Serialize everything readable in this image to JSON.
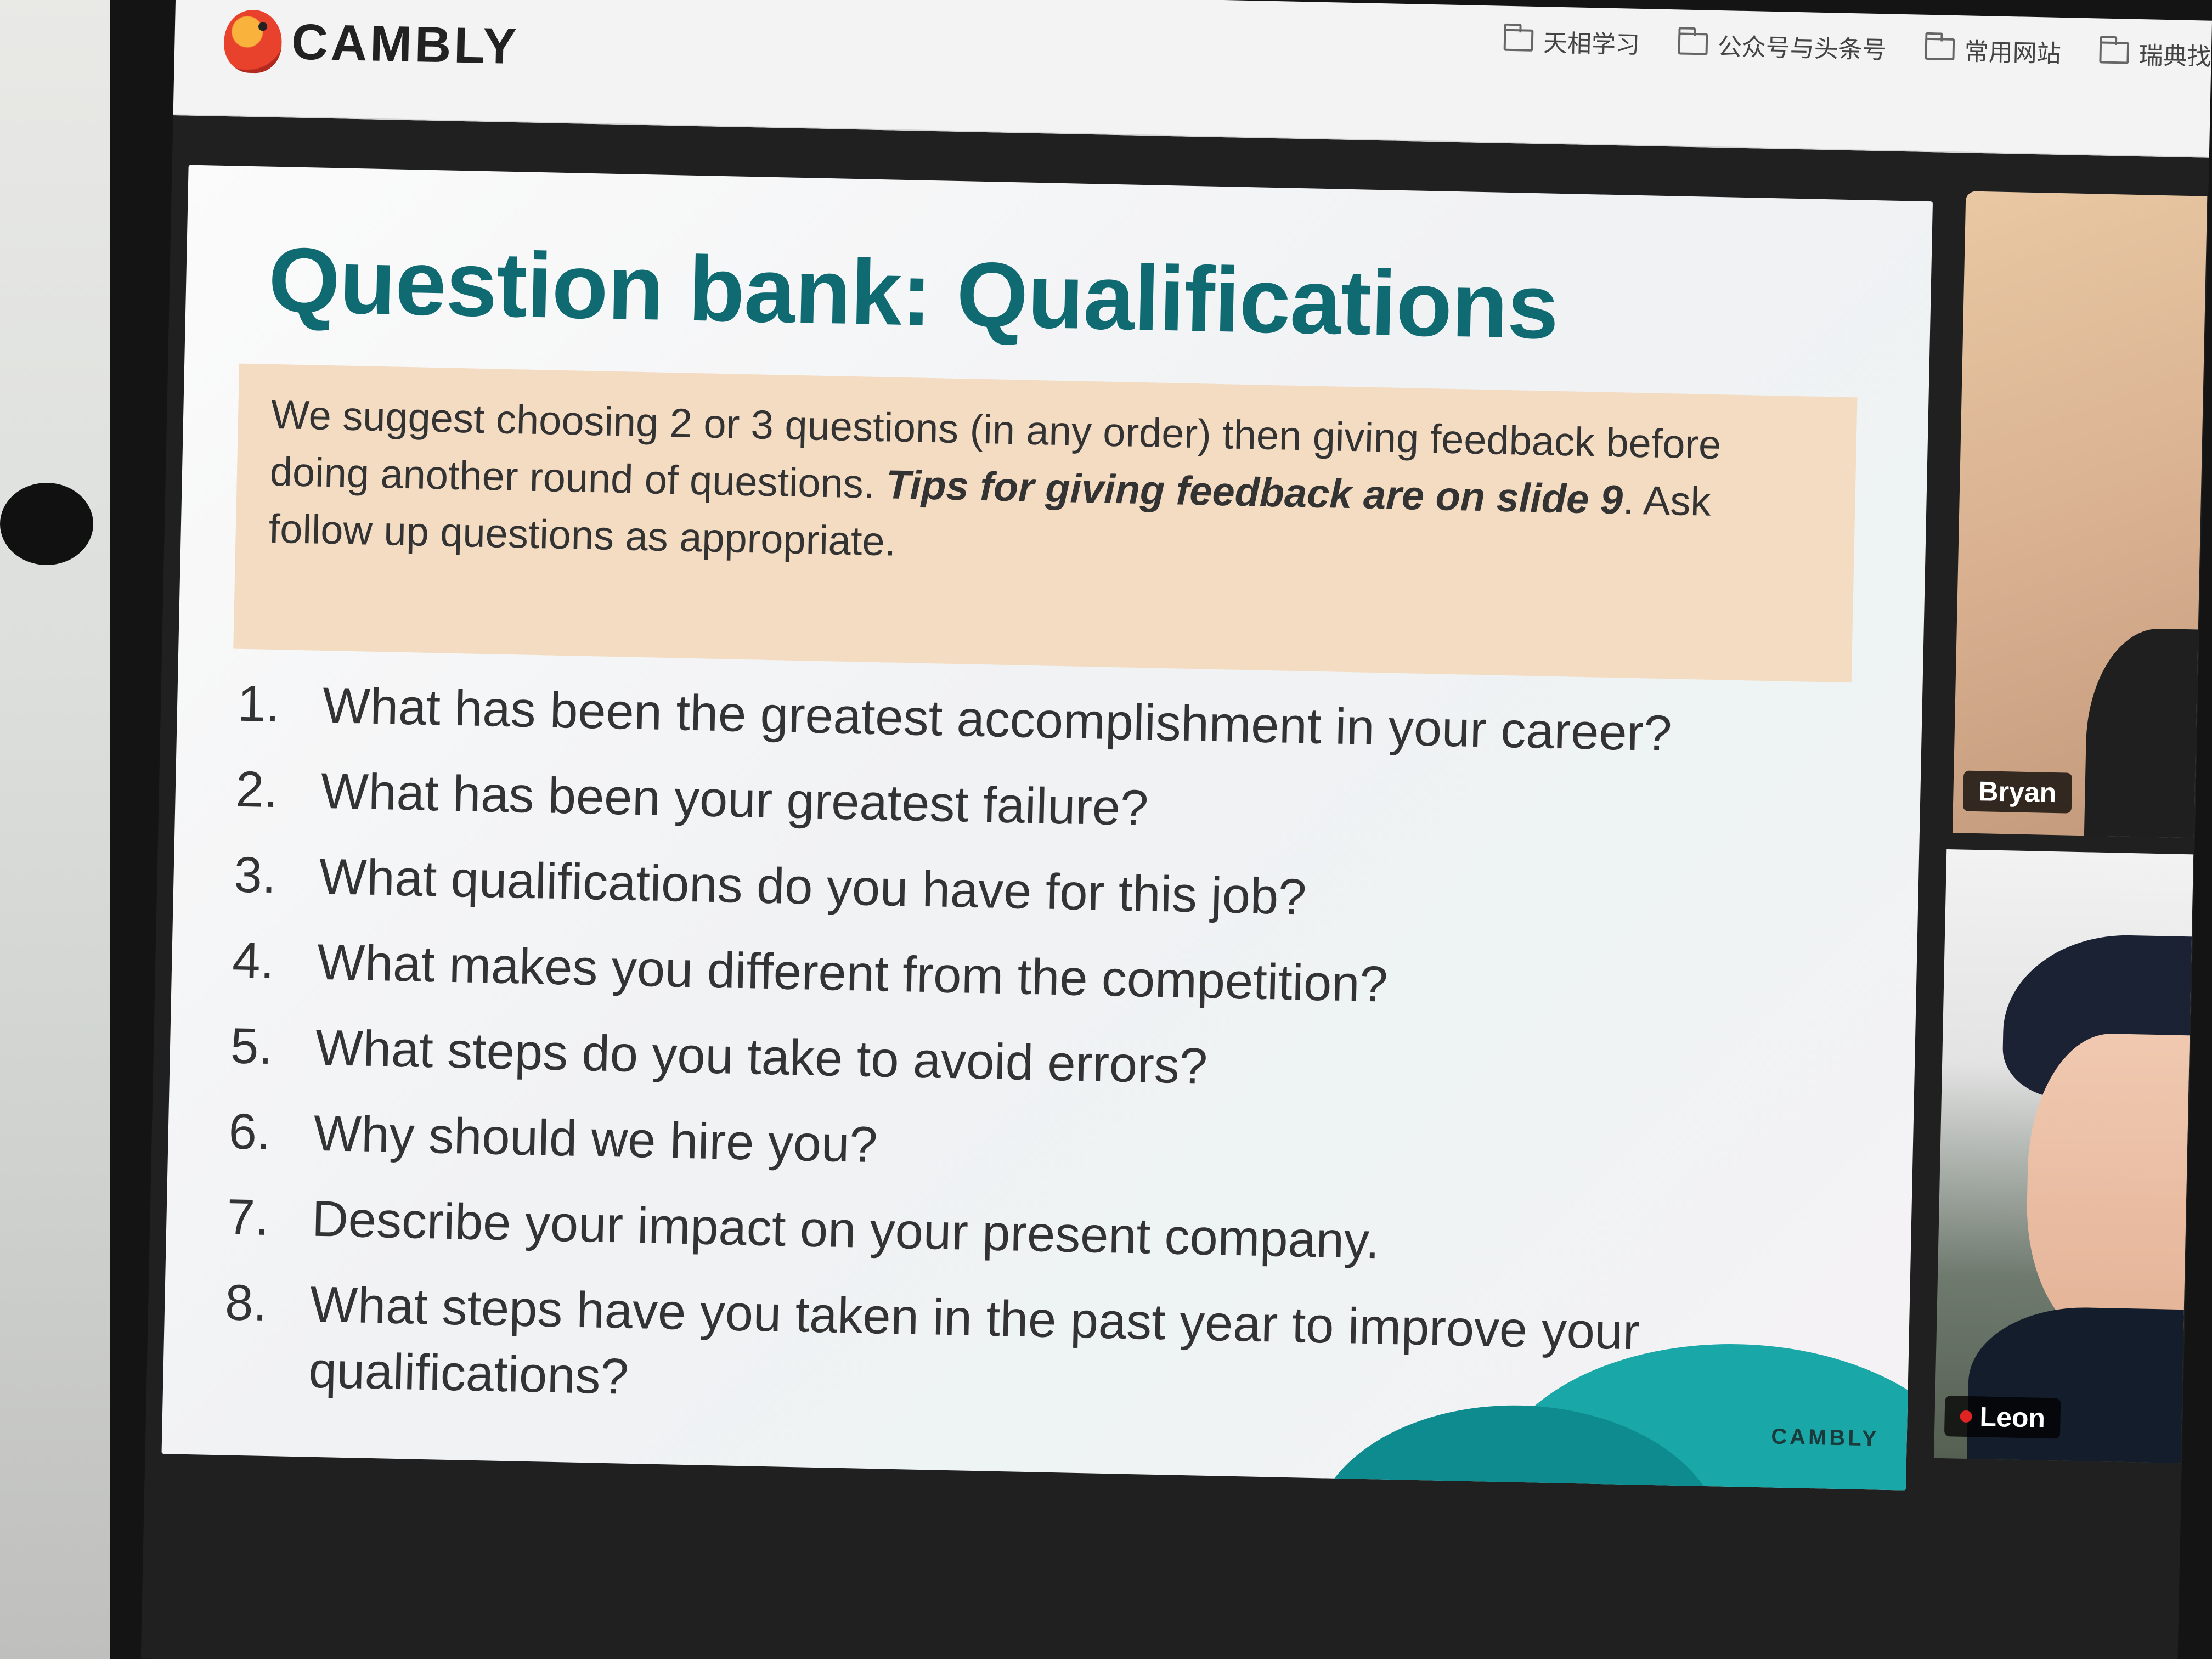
{
  "browser": {
    "brand": "CAMBLY",
    "bookmarks": [
      "天相学习",
      "公众号与头条号",
      "常用网站",
      "瑞典找"
    ]
  },
  "slide": {
    "title": "Question bank: Qualifications",
    "tip_part1": "We suggest choosing 2 or 3 questions (in any order) then giving feedback before doing another round of questions. ",
    "tip_bold": "Tips for giving feedback are on slide 9",
    "tip_part2": ". Ask follow up questions as appropriate.",
    "questions": [
      {
        "num": "1.",
        "text": "What has been the greatest accomplishment in your career?"
      },
      {
        "num": "2.",
        "text": "What has been your greatest failure?"
      },
      {
        "num": "3.",
        "text": "What qualifications do you have for this job?"
      },
      {
        "num": "4.",
        "text": "What makes you different from the competition?"
      },
      {
        "num": "5.",
        "text": "What steps do you take to avoid errors?"
      },
      {
        "num": "6.",
        "text": "Why should we hire you?"
      },
      {
        "num": "7.",
        "text": "Describe your impact on your present company."
      },
      {
        "num": "8.",
        "text": "What steps have you taken in the past year to improve your qualifications?"
      }
    ],
    "footer_brand": "CAMBLY"
  },
  "participants": [
    {
      "name": "Bryan"
    },
    {
      "name": "Leon"
    }
  ],
  "colors": {
    "title": "#0f6a72",
    "tip_background": "#f3dcc2",
    "wave": "#1aa7a8"
  }
}
